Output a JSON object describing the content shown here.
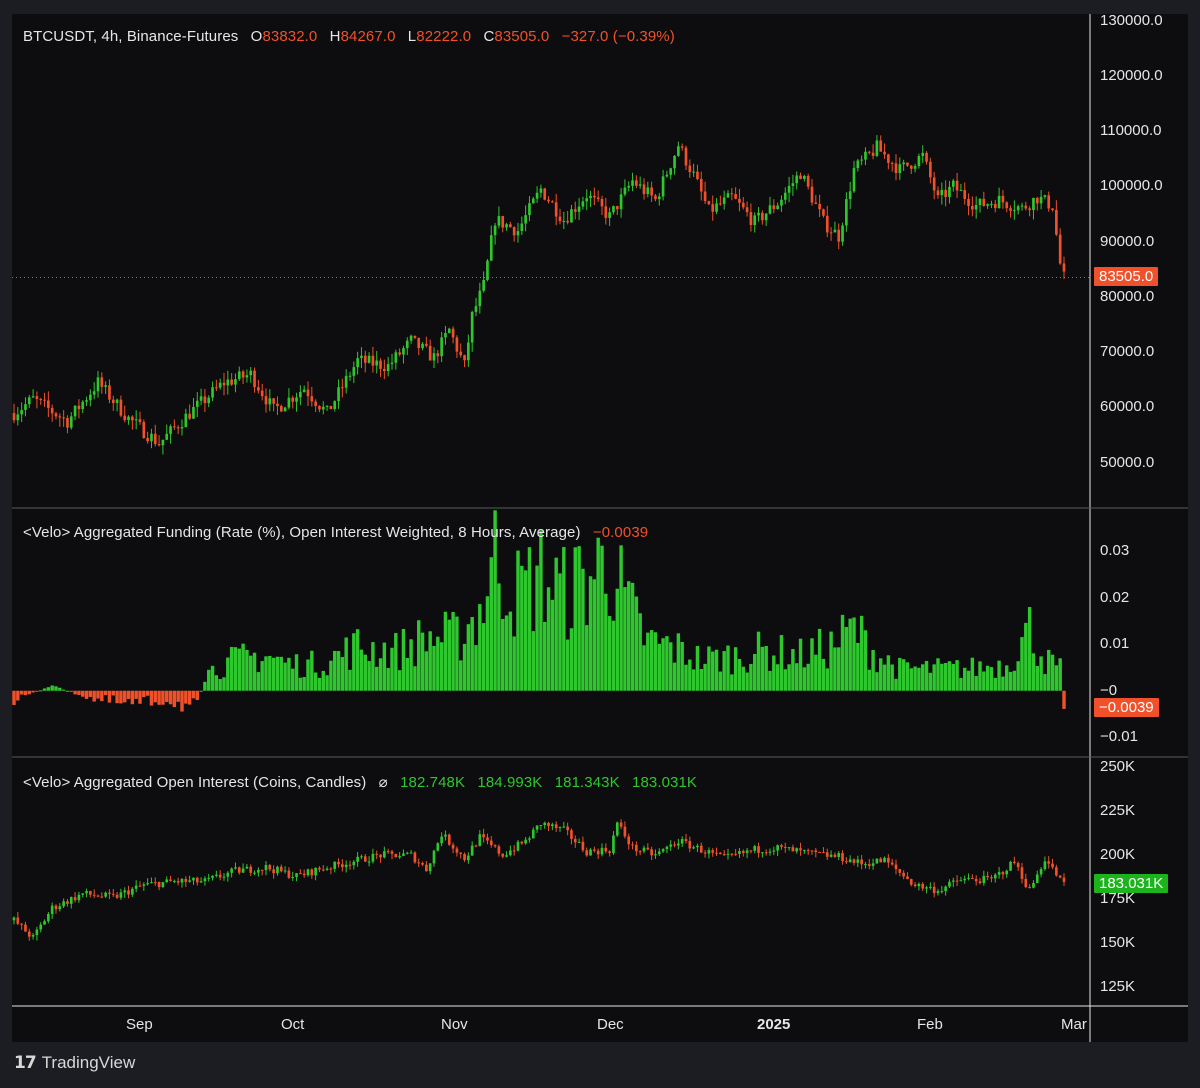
{
  "brand": {
    "name": "TradingView",
    "logo_icon": "tradingview-logo-icon"
  },
  "colors": {
    "up": "#2ec72e",
    "down": "#f0512a",
    "text": "#e6e6e6",
    "background": "#0d0d0f",
    "frame": "#1c1d22"
  },
  "x_axis": {
    "labels": [
      "Sep",
      "Oct",
      "Nov",
      "Dec",
      "2025",
      "Feb",
      "Mar"
    ]
  },
  "chart_data": [
    {
      "type": "candlestick",
      "legend": {
        "symbol": "BTCUSDT, 4h, Binance-Futures",
        "o_label": "O",
        "o": "83832.0",
        "h_label": "H",
        "h": "84267.0",
        "l_label": "L",
        "l": "82222.0",
        "c_label": "C",
        "c": "83505.0",
        "change": "−327.0 (−0.39%)"
      },
      "y_ticks": [
        "130000.0",
        "120000.0",
        "110000.0",
        "100000.0",
        "90000.0",
        "80000.0",
        "70000.0",
        "60000.0",
        "50000.0"
      ],
      "ylim": [
        42000,
        131000
      ],
      "last_price_label": "83505.0",
      "last_price": 83505,
      "anchors": [
        [
          0,
          59000
        ],
        [
          5,
          61500
        ],
        [
          14,
          57500
        ],
        [
          22,
          64500
        ],
        [
          30,
          58000
        ],
        [
          38,
          53500
        ],
        [
          46,
          59000
        ],
        [
          55,
          64500
        ],
        [
          62,
          66000
        ],
        [
          68,
          59500
        ],
        [
          76,
          63500
        ],
        [
          82,
          59000
        ],
        [
          90,
          68500
        ],
        [
          98,
          67500
        ],
        [
          104,
          72000
        ],
        [
          110,
          69000
        ],
        [
          114,
          74000
        ],
        [
          118,
          67500
        ],
        [
          120,
          76500
        ],
        [
          123,
          82000
        ],
        [
          126,
          94000
        ],
        [
          132,
          92000
        ],
        [
          138,
          99500
        ],
        [
          144,
          94000
        ],
        [
          150,
          98500
        ],
        [
          156,
          94500
        ],
        [
          162,
          101000
        ],
        [
          168,
          97500
        ],
        [
          174,
          107500
        ],
        [
          178,
          102000
        ],
        [
          182,
          95500
        ],
        [
          188,
          98000
        ],
        [
          194,
          93500
        ],
        [
          200,
          97000
        ],
        [
          206,
          102500
        ],
        [
          212,
          93500
        ],
        [
          216,
          91000
        ],
        [
          220,
          103000
        ],
        [
          226,
          107000
        ],
        [
          232,
          103000
        ],
        [
          238,
          105500
        ],
        [
          242,
          97500
        ],
        [
          246,
          100000
        ],
        [
          252,
          96500
        ],
        [
          258,
          97500
        ],
        [
          264,
          96000
        ],
        [
          268,
          98000
        ],
        [
          272,
          96500
        ],
        [
          274,
          86000
        ],
        [
          275,
          83505
        ]
      ]
    },
    {
      "type": "bar",
      "legend": {
        "title": "<Velo> Aggregated Funding (Rate (%), Open Interest Weighted, 8 Hours, Average)",
        "value": "−0.0039"
      },
      "y_ticks": [
        "0.03",
        "0.02",
        "0.01",
        "−0",
        "−0.01"
      ],
      "ylim": [
        -0.014,
        0.039
      ],
      "last_value_label": "−0.0039",
      "anchors": [
        [
          0,
          -0.002
        ],
        [
          10,
          0.001
        ],
        [
          22,
          -0.002
        ],
        [
          30,
          -0.003
        ],
        [
          40,
          -0.002
        ],
        [
          48,
          -0.004
        ],
        [
          50,
          0.004
        ],
        [
          58,
          0.007
        ],
        [
          66,
          0.008
        ],
        [
          72,
          0.006
        ],
        [
          80,
          0.006
        ],
        [
          90,
          0.01
        ],
        [
          100,
          0.009
        ],
        [
          108,
          0.012
        ],
        [
          116,
          0.012
        ],
        [
          122,
          0.018
        ],
        [
          126,
          0.03
        ],
        [
          132,
          0.022
        ],
        [
          138,
          0.026
        ],
        [
          144,
          0.022
        ],
        [
          150,
          0.025
        ],
        [
          156,
          0.03
        ],
        [
          160,
          0.02
        ],
        [
          166,
          0.011
        ],
        [
          172,
          0.01
        ],
        [
          180,
          0.007
        ],
        [
          190,
          0.008
        ],
        [
          196,
          0.009
        ],
        [
          206,
          0.008
        ],
        [
          214,
          0.01
        ],
        [
          220,
          0.014
        ],
        [
          226,
          0.008
        ],
        [
          232,
          0.005
        ],
        [
          240,
          0.005
        ],
        [
          250,
          0.005
        ],
        [
          260,
          0.006
        ],
        [
          266,
          0.014
        ],
        [
          270,
          0.007
        ],
        [
          274,
          0.005
        ],
        [
          275,
          -0.0039
        ]
      ]
    },
    {
      "type": "candlestick",
      "legend": {
        "title": "<Velo> Aggregated Open Interest (Coins, Candles)",
        "symbol_icon": "empty-set-icon",
        "o": "182.748K",
        "h": "184.993K",
        "l": "181.343K",
        "c": "183.031K"
      },
      "y_ticks": [
        "250K",
        "225K",
        "200K",
        "175K",
        "150K",
        "125K"
      ],
      "ylim": [
        115000,
        255000
      ],
      "last_value_label": "183.031K",
      "last_value": 183031,
      "anchors": [
        [
          0,
          163000
        ],
        [
          5,
          153000
        ],
        [
          10,
          170000
        ],
        [
          18,
          178000
        ],
        [
          26,
          176000
        ],
        [
          34,
          183000
        ],
        [
          42,
          185000
        ],
        [
          50,
          185000
        ],
        [
          58,
          191000
        ],
        [
          66,
          193000
        ],
        [
          74,
          188000
        ],
        [
          80,
          192000
        ],
        [
          88,
          196000
        ],
        [
          96,
          200000
        ],
        [
          104,
          200000
        ],
        [
          108,
          192000
        ],
        [
          112,
          212000
        ],
        [
          118,
          198000
        ],
        [
          122,
          210000
        ],
        [
          128,
          200000
        ],
        [
          134,
          208000
        ],
        [
          138,
          218000
        ],
        [
          144,
          214000
        ],
        [
          150,
          202000
        ],
        [
          156,
          203000
        ],
        [
          158,
          218000
        ],
        [
          162,
          204000
        ],
        [
          168,
          200000
        ],
        [
          174,
          208000
        ],
        [
          180,
          203000
        ],
        [
          186,
          198000
        ],
        [
          194,
          203000
        ],
        [
          200,
          204000
        ],
        [
          208,
          201000
        ],
        [
          216,
          199000
        ],
        [
          222,
          195000
        ],
        [
          228,
          197000
        ],
        [
          236,
          183000
        ],
        [
          242,
          180000
        ],
        [
          248,
          186000
        ],
        [
          256,
          186000
        ],
        [
          262,
          196000
        ],
        [
          266,
          180000
        ],
        [
          270,
          198000
        ],
        [
          275,
          183031
        ]
      ]
    }
  ]
}
